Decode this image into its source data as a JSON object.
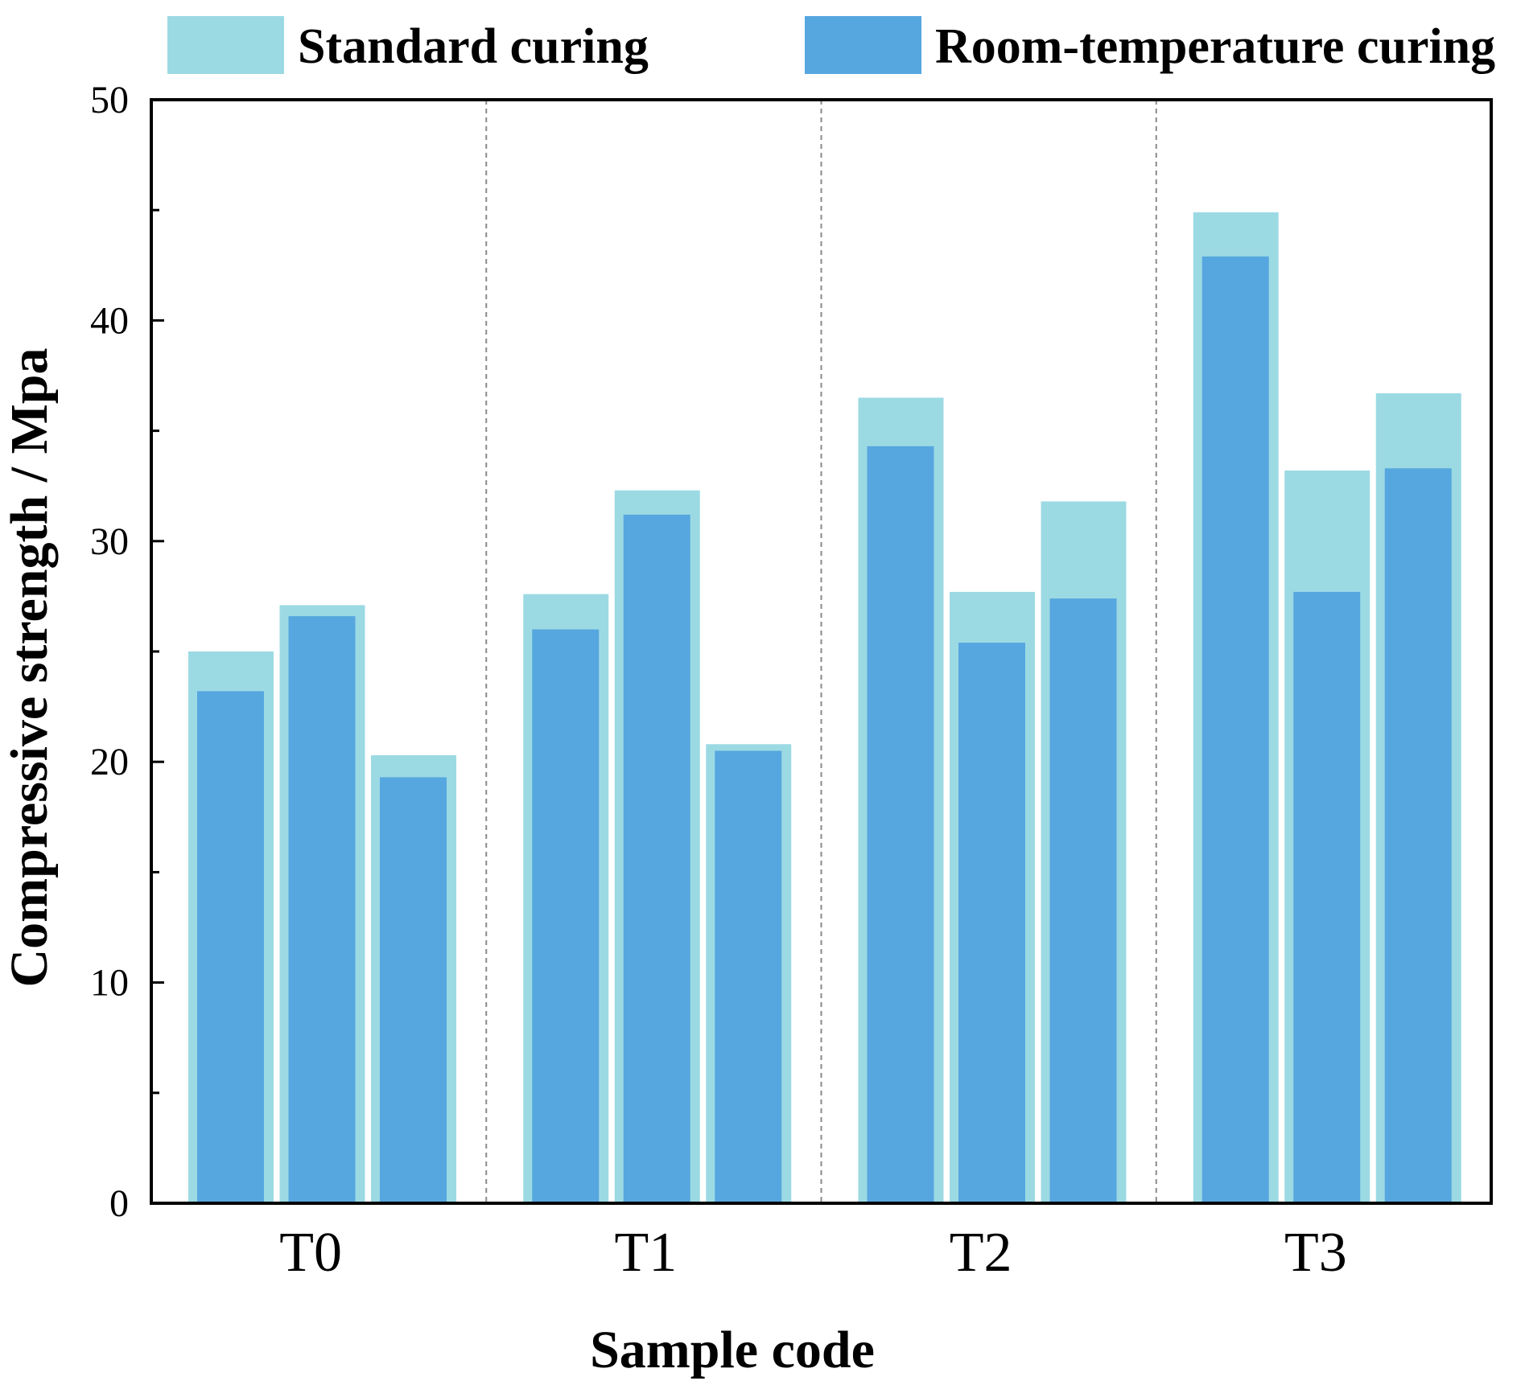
{
  "chart_data": {
    "type": "bar",
    "title": "",
    "xlabel": "Sample code",
    "ylabel": "Compressive strength / Mpa",
    "ylim": [
      0,
      50
    ],
    "yticks": [
      "0",
      "10",
      "20",
      "30",
      "40",
      "50"
    ],
    "categories": [
      "T0",
      "T1",
      "T2",
      "T3"
    ],
    "bars_per_category": 3,
    "legend_position": "top",
    "grid": false,
    "group_separators": "dashed",
    "series": [
      {
        "name": "Standard curing",
        "color": "#9cdae3",
        "values": [
          [
            25.0,
            27.1,
            20.3
          ],
          [
            27.6,
            32.3,
            20.8
          ],
          [
            36.5,
            27.7,
            31.8
          ],
          [
            44.9,
            33.2,
            36.7
          ]
        ]
      },
      {
        "name": "Room-temperature curing",
        "color": "#56a6df",
        "values": [
          [
            23.2,
            26.6,
            19.3
          ],
          [
            26.0,
            31.2,
            20.5
          ],
          [
            34.3,
            25.4,
            27.4
          ],
          [
            42.9,
            27.7,
            33.3
          ]
        ]
      }
    ]
  }
}
